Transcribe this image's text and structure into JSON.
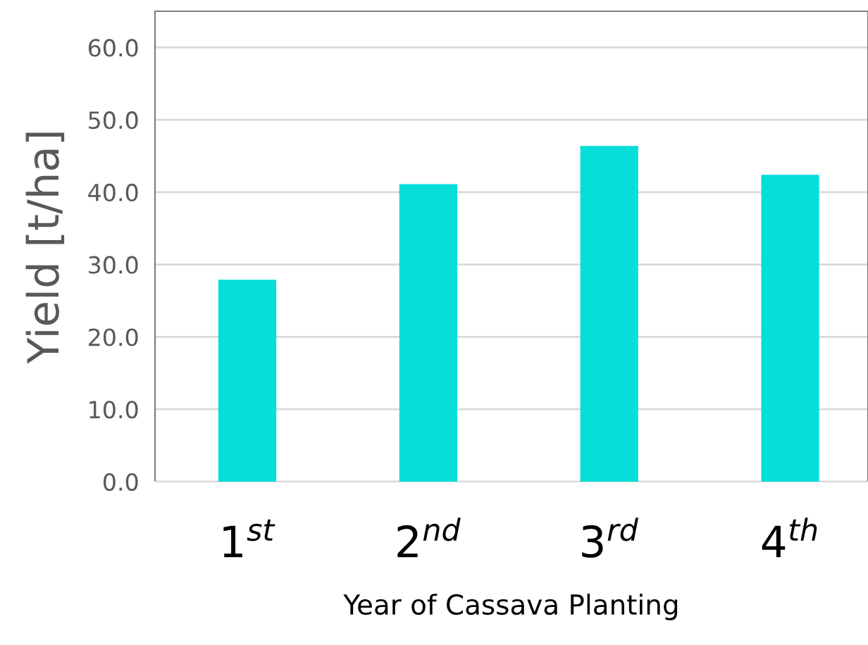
{
  "chart_data": {
    "type": "bar",
    "categories": [
      "1$^{st}$",
      "2$^{nd}$",
      "3$^{rd}$",
      "4$^{th}$"
    ],
    "values": [
      27.9,
      41.1,
      46.4,
      42.4
    ],
    "color": "#06ded9",
    "xlabel": "Year of Cassava Planting",
    "ylabel": "Yield [t/ha]",
    "ylim": [
      0,
      65
    ],
    "yticks": [
      {
        "value": 0,
        "label": "0.0"
      },
      {
        "value": 10,
        "label": "10.0"
      },
      {
        "value": 20,
        "label": "20.0"
      },
      {
        "value": 30,
        "label": "30.0"
      },
      {
        "value": 40,
        "label": "40.0"
      },
      {
        "value": 50,
        "label": "50.0"
      },
      {
        "value": 60,
        "label": "60.0"
      }
    ],
    "grid": "y"
  }
}
